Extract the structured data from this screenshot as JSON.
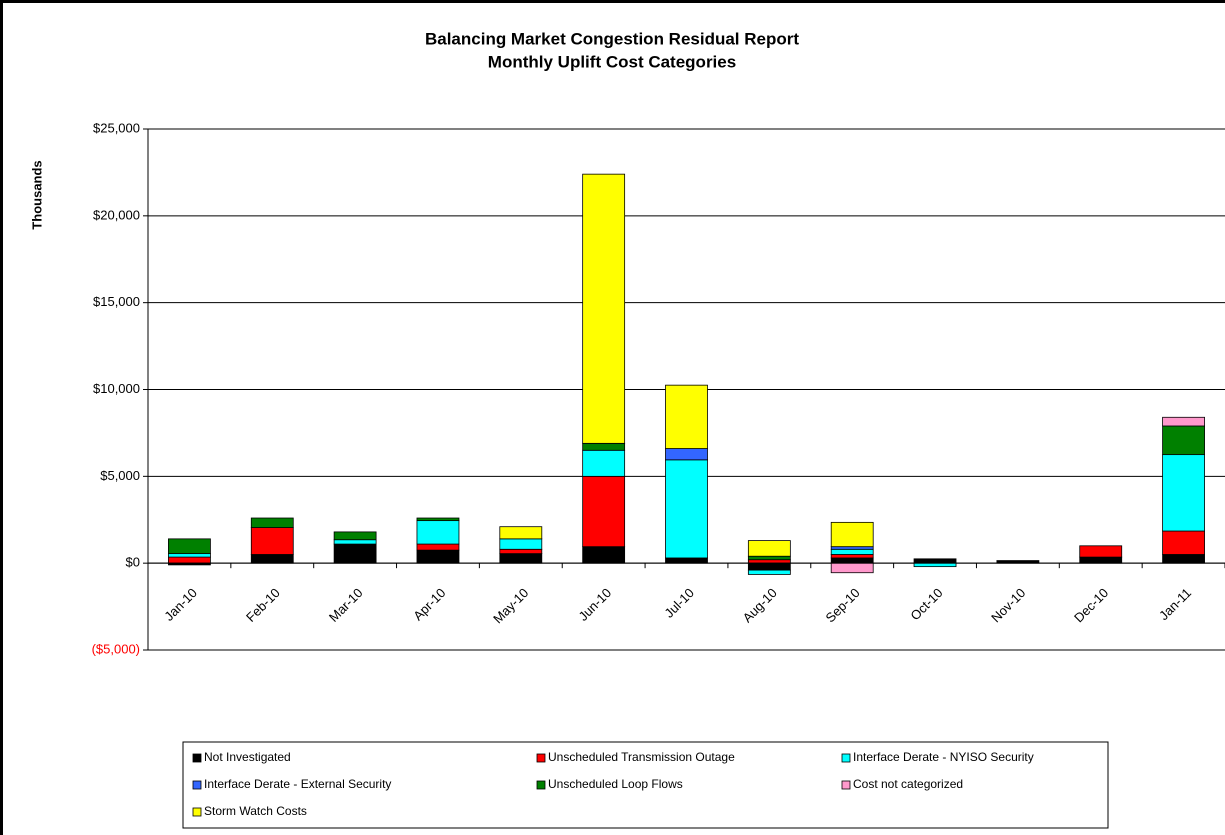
{
  "chart_data": {
    "type": "stacked_bar",
    "title": "Balancing Market Congestion Residual Report",
    "subtitle": "Monthly Uplift Cost Categories",
    "y_label": "Thousands",
    "categories": [
      "Jan-10",
      "Feb-10",
      "Mar-10",
      "Apr-10",
      "May-10",
      "Jun-10",
      "Jul-10",
      "Aug-10",
      "Sep-10",
      "Oct-10",
      "Nov-10",
      "Dec-10",
      "Jan-11"
    ],
    "series": [
      {
        "name": "Not Investigated",
        "color": "#000000",
        "values": [
          -100,
          500,
          1100,
          750,
          550,
          950,
          300,
          -400,
          300,
          250,
          150,
          350,
          500
        ]
      },
      {
        "name": "Unscheduled Transmission Outage",
        "color": "#ff0000",
        "values": [
          350,
          1550,
          null,
          350,
          250,
          4050,
          null,
          200,
          200,
          null,
          null,
          650,
          1350
        ]
      },
      {
        "name": "Interface Derate - NYISO  Security",
        "color": "#00ffff",
        "values": [
          200,
          null,
          250,
          1350,
          600,
          1500,
          5650,
          -250,
          300,
          -200,
          null,
          null,
          4400
        ]
      },
      {
        "name": "Interface Derate - External Security",
        "color": "#3366ff",
        "values": [
          null,
          null,
          null,
          null,
          null,
          null,
          650,
          null,
          150,
          null,
          null,
          null,
          null
        ]
      },
      {
        "name": "Unscheduled Loop Flows",
        "color": "#008000",
        "values": [
          850,
          550,
          450,
          150,
          null,
          400,
          null,
          200,
          null,
          null,
          null,
          null,
          1650
        ]
      },
      {
        "name": "Cost not categorized",
        "color": "#ff99cc",
        "values": [
          null,
          null,
          null,
          null,
          null,
          null,
          null,
          null,
          -550,
          null,
          null,
          null,
          500
        ]
      },
      {
        "name": "Storm Watch Costs",
        "color": "#ffff00",
        "values": [
          null,
          null,
          null,
          null,
          700,
          15500,
          3650,
          900,
          1400,
          null,
          null,
          null,
          null
        ]
      }
    ],
    "ylim": [
      -5000,
      25000
    ],
    "yticks": [
      {
        "value": -5000,
        "label": "($5,000)"
      },
      {
        "value": 0,
        "label": "$0"
      },
      {
        "value": 5000,
        "label": "$5,000"
      },
      {
        "value": 10000,
        "label": "$10,000"
      },
      {
        "value": 15000,
        "label": "$15,000"
      },
      {
        "value": 20000,
        "label": "$20,000"
      },
      {
        "value": 25000,
        "label": "$25,000"
      }
    ],
    "negative_label_color": "#ff0000",
    "grid": true
  }
}
